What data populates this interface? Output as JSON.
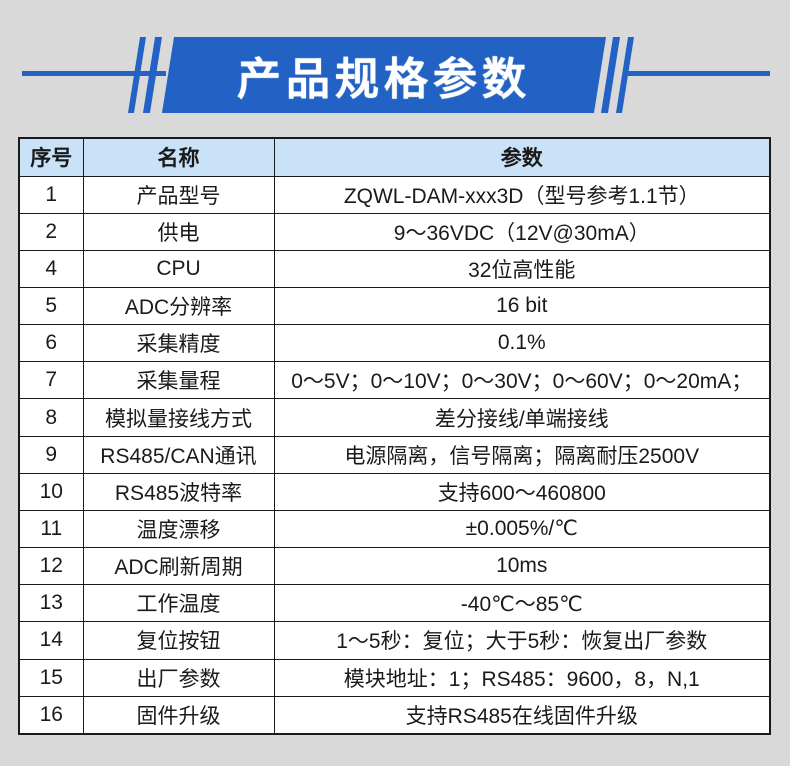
{
  "colors": {
    "accent_blue": "#2262c4",
    "table_header_bg": "#c9e2f7",
    "page_background": "#d9d9d9"
  },
  "banner": {
    "title": "产品规格参数"
  },
  "table": {
    "headers": [
      "序号",
      "名称",
      "参数"
    ],
    "rows": [
      {
        "no": "1",
        "name": "产品型号",
        "param": "ZQWL-DAM-xxx3D（型号参考1.1节）"
      },
      {
        "no": "2",
        "name": "供电",
        "param": "9～36VDC（12V@30mA）"
      },
      {
        "no": "4",
        "name": "CPU",
        "param": "32位高性能"
      },
      {
        "no": "5",
        "name": "ADC分辨率",
        "param": "16 bit"
      },
      {
        "no": "6",
        "name": "采集精度",
        "param": "0.1%"
      },
      {
        "no": "7",
        "name": "采集量程",
        "param": "0～5V；0～10V；0～30V；0～60V；0～20mA；"
      },
      {
        "no": "8",
        "name": "模拟量接线方式",
        "param": "差分接线/单端接线"
      },
      {
        "no": "9",
        "name": "RS485/CAN通讯",
        "param": "电源隔离，信号隔离；隔离耐压2500V"
      },
      {
        "no": "10",
        "name": "RS485波特率",
        "param": "支持600～460800"
      },
      {
        "no": "11",
        "name": "温度漂移",
        "param": "±0.005%/℃"
      },
      {
        "no": "12",
        "name": "ADC刷新周期",
        "param": "10ms"
      },
      {
        "no": "13",
        "name": "工作温度",
        "param": "-40℃～85℃"
      },
      {
        "no": "14",
        "name": "复位按钮",
        "param": "1～5秒：复位；大于5秒：恢复出厂参数"
      },
      {
        "no": "15",
        "name": "出厂参数",
        "param": "模块地址：1；RS485：9600，8，N,1"
      },
      {
        "no": "16",
        "name": "固件升级",
        "param": "支持RS485在线固件升级"
      }
    ]
  }
}
